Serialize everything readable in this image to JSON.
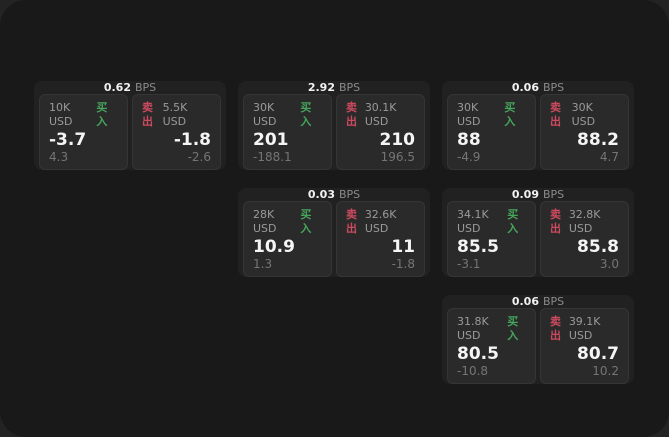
{
  "labels": {
    "buy": "买入",
    "sell": "卖出",
    "bps_unit": "BPS"
  },
  "colors": {
    "buy_green": "#46a55c",
    "sell_red": "#cc4a5e",
    "panel_bg": "#2a2a2a",
    "card_bg": "#212121",
    "app_bg": "#191919"
  },
  "cards": [
    {
      "bps": "0.62",
      "buy": {
        "amount": "10K USD",
        "value": "-3.7",
        "sub": "4.3"
      },
      "sell": {
        "amount": "5.5K USD",
        "value": "-1.8",
        "sub": "-2.6"
      }
    },
    {
      "bps": "2.92",
      "buy": {
        "amount": "30K USD",
        "value": "201",
        "sub": "-188.1"
      },
      "sell": {
        "amount": "30.1K USD",
        "value": "210",
        "sub": "196.5"
      }
    },
    {
      "bps": "0.06",
      "buy": {
        "amount": "30K USD",
        "value": "88",
        "sub": "-4.9"
      },
      "sell": {
        "amount": "30K USD",
        "value": "88.2",
        "sub": "4.7"
      }
    },
    {
      "bps": "0.03",
      "buy": {
        "amount": "28K USD",
        "value": "10.9",
        "sub": "1.3"
      },
      "sell": {
        "amount": "32.6K USD",
        "value": "11",
        "sub": "-1.8"
      }
    },
    {
      "bps": "0.09",
      "buy": {
        "amount": "34.1K USD",
        "value": "85.5",
        "sub": "-3.1"
      },
      "sell": {
        "amount": "32.8K USD",
        "value": "85.8",
        "sub": "3.0"
      }
    },
    {
      "bps": "0.06",
      "buy": {
        "amount": "31.8K USD",
        "value": "80.5",
        "sub": "-10.8"
      },
      "sell": {
        "amount": "39.1K USD",
        "value": "80.7",
        "sub": "10.2"
      }
    }
  ]
}
